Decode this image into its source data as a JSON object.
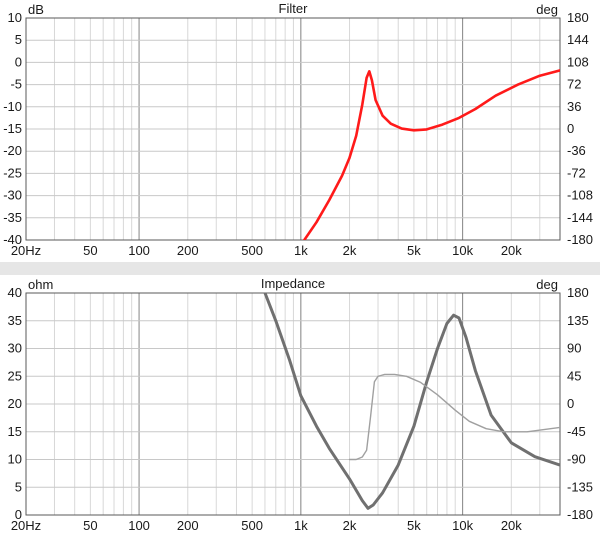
{
  "chart_data": [
    {
      "type": "line",
      "title": "Filter",
      "ylabel": "dB",
      "y2label": "deg",
      "x_scale": "log",
      "xlim": [
        20,
        40000
      ],
      "ylim": [
        -40,
        10
      ],
      "y2lim": [
        -180,
        180
      ],
      "grid": true,
      "x_ticks": [
        {
          "value": 20,
          "label": "20Hz"
        },
        {
          "value": 50,
          "label": "50"
        },
        {
          "value": 100,
          "label": "100"
        },
        {
          "value": 200,
          "label": "200"
        },
        {
          "value": 500,
          "label": "500"
        },
        {
          "value": 1000,
          "label": "1k"
        },
        {
          "value": 2000,
          "label": "2k"
        },
        {
          "value": 5000,
          "label": "5k"
        },
        {
          "value": 10000,
          "label": "10k"
        },
        {
          "value": 20000,
          "label": "20k"
        }
      ],
      "y_ticks": [
        "10",
        "5",
        "0",
        "-5",
        "-10",
        "-15",
        "-20",
        "-25",
        "-30",
        "-35",
        "-40"
      ],
      "y2_ticks": [
        "180",
        "144",
        "108",
        "72",
        "36",
        "0",
        "-36",
        "-72",
        "-108",
        "-144",
        "-180"
      ],
      "series": [
        {
          "color": "#ff1a1a",
          "axis": "left",
          "x": [
            1050,
            1250,
            1500,
            1800,
            2000,
            2200,
            2400,
            2550,
            2650,
            2750,
            2900,
            3200,
            3600,
            4200,
            5000,
            6000,
            7500,
            9500,
            12000,
            16000,
            22000,
            30000,
            40000
          ],
          "y": [
            -40,
            -36,
            -31,
            -25.5,
            -21.5,
            -16.5,
            -9.5,
            -3.5,
            -2,
            -4,
            -8.5,
            -12,
            -13.8,
            -14.9,
            -15.3,
            -15.1,
            -14,
            -12.5,
            -10.5,
            -7.5,
            -5,
            -3,
            -1.8
          ]
        }
      ]
    },
    {
      "type": "line",
      "title": "Impedance",
      "ylabel": "ohm",
      "y2label": "deg",
      "x_scale": "log",
      "xlim": [
        20,
        40000
      ],
      "ylim": [
        0,
        40
      ],
      "y2lim": [
        -180,
        180
      ],
      "grid": true,
      "x_ticks": [
        {
          "value": 20,
          "label": "20Hz"
        },
        {
          "value": 50,
          "label": "50"
        },
        {
          "value": 100,
          "label": "100"
        },
        {
          "value": 200,
          "label": "200"
        },
        {
          "value": 500,
          "label": "500"
        },
        {
          "value": 1000,
          "label": "1k"
        },
        {
          "value": 2000,
          "label": "2k"
        },
        {
          "value": 5000,
          "label": "5k"
        },
        {
          "value": 10000,
          "label": "10k"
        },
        {
          "value": 20000,
          "label": "20k"
        }
      ],
      "y_ticks": [
        "40",
        "35",
        "30",
        "25",
        "20",
        "15",
        "10",
        "5",
        "0"
      ],
      "y2_ticks": [
        "180",
        "135",
        "90",
        "45",
        "0",
        "-45",
        "-90",
        "-135",
        "-180"
      ],
      "series": [
        {
          "color": "#707070",
          "axis": "left",
          "x": [
            600,
            700,
            850,
            1000,
            1250,
            1500,
            2000,
            2400,
            2600,
            2800,
            3200,
            4000,
            5000,
            6000,
            7000,
            8000,
            8800,
            9500,
            10500,
            12000,
            15000,
            20000,
            28000,
            40000
          ],
          "y": [
            40,
            35,
            28,
            21.5,
            16,
            12,
            6.5,
            2.6,
            1.2,
            1.8,
            4,
            9,
            16,
            24,
            30,
            34.5,
            36,
            35.5,
            32,
            26,
            18,
            13,
            10.5,
            9
          ]
        },
        {
          "color": "#a0a0a0",
          "axis": "right",
          "x": [
            2000,
            2200,
            2400,
            2550,
            2700,
            2850,
            3000,
            3300,
            3800,
            4500,
            5500,
            7000,
            9000,
            11000,
            14000,
            18000,
            25000,
            40000
          ],
          "y": [
            -90,
            -90,
            -86,
            -75,
            -20,
            36,
            45,
            48,
            48,
            45,
            35,
            15,
            -10,
            -28,
            -40,
            -45,
            -45,
            -38
          ]
        }
      ]
    }
  ]
}
